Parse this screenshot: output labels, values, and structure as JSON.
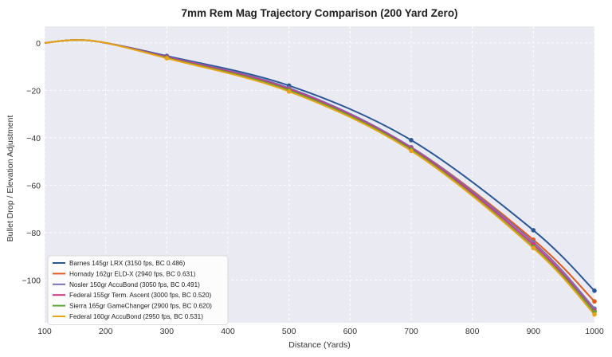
{
  "chart_data": {
    "type": "line",
    "title": "7mm Rem Mag Trajectory Comparison (200 Yard Zero)",
    "xlabel": "Distance (Yards)",
    "ylabel": "Bullet Drop / Elevation Adjustment",
    "xlim": [
      100,
      1000
    ],
    "ylim": [
      -118,
      7
    ],
    "xticks": [
      100,
      200,
      300,
      400,
      500,
      600,
      700,
      800,
      900,
      1000
    ],
    "yticks": [
      0,
      -20,
      -40,
      -60,
      -80,
      -100
    ],
    "grid": true,
    "legend": "bottom-left",
    "marker_x": [
      300,
      500,
      700,
      900,
      1000
    ],
    "series": [
      {
        "name": "Barnes 145gr LRX (3150 fps, BC 0.486)",
        "color": "#2b5797",
        "x": [
          100,
          150,
          200,
          300,
          500,
          700,
          900,
          1000
        ],
        "y": [
          0,
          1.2,
          0,
          -5.5,
          -18,
          -41,
          -79,
          -104.5
        ]
      },
      {
        "name": "Hornady 162gr ELD-X (2940 fps, BC 0.631)",
        "color": "#e05a1b",
        "x": [
          100,
          150,
          200,
          300,
          500,
          700,
          900,
          1000
        ],
        "y": [
          0,
          1.2,
          0,
          -6,
          -19.5,
          -44,
          -83,
          -109
        ]
      },
      {
        "name": "Nosler 150gr AccuBond (3050 fps, BC 0.491)",
        "color": "#7b6fb0",
        "x": [
          100,
          150,
          200,
          300,
          500,
          700,
          900,
          1000
        ],
        "y": [
          0,
          1.2,
          0,
          -5.8,
          -19,
          -44,
          -84,
          -112
        ]
      },
      {
        "name": "Federal 155gr Term. Ascent (3000 fps, BC 0.520)",
        "color": "#d63384",
        "x": [
          100,
          150,
          200,
          300,
          500,
          700,
          900,
          1000
        ],
        "y": [
          0,
          1.2,
          0,
          -6,
          -19.5,
          -44.5,
          -85,
          -113
        ]
      },
      {
        "name": "Sierra 165gr GameChanger (2900 fps, BC 0.620)",
        "color": "#5aa832",
        "x": [
          100,
          150,
          200,
          300,
          500,
          700,
          900,
          1000
        ],
        "y": [
          0,
          1.2,
          0,
          -6.3,
          -20,
          -45,
          -86,
          -113.5
        ]
      },
      {
        "name": "Federal 160gr AccuBond (2950 fps, BC 0.531)",
        "color": "#e8a317",
        "x": [
          100,
          150,
          200,
          300,
          500,
          700,
          900,
          1000
        ],
        "y": [
          0,
          1.2,
          0,
          -6.5,
          -20.5,
          -45.5,
          -86.5,
          -114.5
        ]
      }
    ]
  }
}
